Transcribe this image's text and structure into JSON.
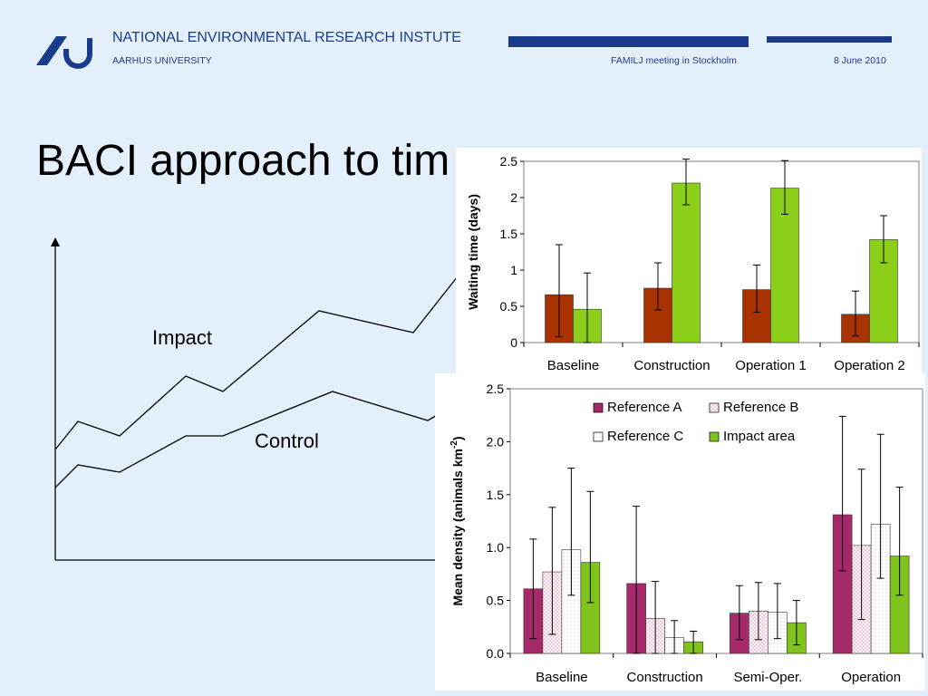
{
  "header": {
    "organization": "NATIONAL ENVIRONMENTAL RESEARCH INSTUTE",
    "university": "AARHUS UNIVERSITY",
    "meeting": "FAMILJ meeting in Stockholm",
    "date": "8 June 2010",
    "brand_color": "#1a3a8c"
  },
  "slide": {
    "title": "BACI approach to tim",
    "labels": {
      "impact": "Impact",
      "control": "Control"
    }
  },
  "chart_data": [
    {
      "type": "bar",
      "title": "",
      "xlabel": "",
      "ylabel": "Waiting time (days)",
      "ylim": [
        0,
        2.5
      ],
      "yticks": [
        "0",
        "0.5",
        "1",
        "1.5",
        "2",
        "2.5"
      ],
      "grid": false,
      "categories": [
        "Baseline",
        "Construction",
        "Operation 1",
        "Operation 2"
      ],
      "series": [
        {
          "color": "#a93300",
          "values": [
            0.66,
            0.75,
            0.73,
            0.39
          ],
          "err_low": [
            0.08,
            0.45,
            0.42,
            0.09
          ],
          "err_high": [
            1.35,
            1.1,
            1.07,
            0.71
          ]
        },
        {
          "color": "#8ccf1a",
          "values": [
            0.46,
            2.2,
            2.13,
            1.42
          ],
          "err_low": [
            0.0,
            1.9,
            1.77,
            1.1
          ],
          "err_high": [
            0.96,
            2.53,
            2.51,
            1.75
          ]
        }
      ]
    },
    {
      "type": "bar",
      "title": "",
      "xlabel": "",
      "ylabel": "Mean density (animals km-2)",
      "ylim": [
        0,
        2.5
      ],
      "yticks": [
        "0.0",
        "0.5",
        "1.0",
        "1.5",
        "2.0",
        "2.5"
      ],
      "grid": false,
      "legend": "top-right",
      "categories": [
        "Baseline",
        "Construction",
        "Semi-Oper.",
        "Operation"
      ],
      "series": [
        {
          "name": "Reference A",
          "color": "#a42a6a",
          "pattern": "solid",
          "values": [
            0.61,
            0.66,
            0.38,
            1.31
          ],
          "err_low": [
            0.14,
            0.0,
            0.13,
            0.78
          ],
          "err_high": [
            1.08,
            1.39,
            0.64,
            2.24
          ]
        },
        {
          "name": "Reference B",
          "color": "#e97aa9",
          "pattern": "dots",
          "values": [
            0.77,
            0.33,
            0.4,
            1.02
          ],
          "err_low": [
            0.18,
            0.0,
            0.13,
            0.32
          ],
          "err_high": [
            1.38,
            0.68,
            0.67,
            1.74
          ]
        },
        {
          "name": "Reference C",
          "color": "#999999",
          "pattern": "fine-dots",
          "values": [
            0.98,
            0.15,
            0.39,
            1.22
          ],
          "err_low": [
            0.55,
            0.0,
            0.14,
            0.71
          ],
          "err_high": [
            1.75,
            0.31,
            0.66,
            2.07
          ]
        },
        {
          "name": "Impact area",
          "color": "#7fc31c",
          "pattern": "solid",
          "values": [
            0.86,
            0.11,
            0.29,
            0.92
          ],
          "err_low": [
            0.48,
            0.0,
            0.08,
            0.55
          ],
          "err_high": [
            1.53,
            0.21,
            0.5,
            1.57
          ]
        }
      ]
    }
  ]
}
